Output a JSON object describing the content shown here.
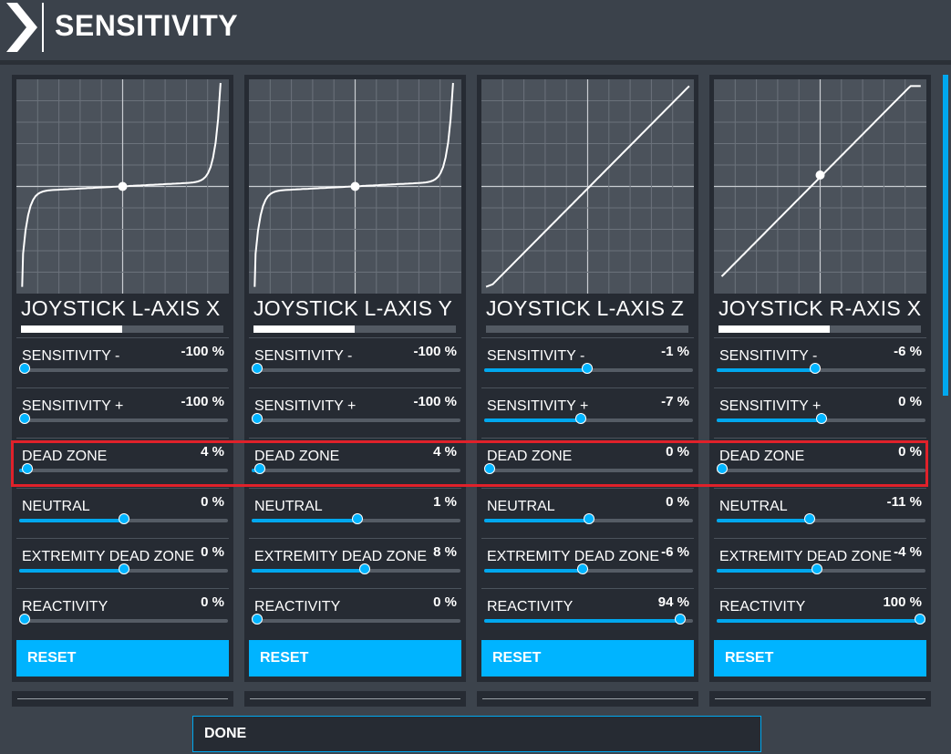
{
  "header": {
    "title": "SENSITIVITY"
  },
  "axes": [
    {
      "title": "JOYSTICK L-AXIS X",
      "progress": 0.5,
      "curve": "cubic",
      "center_marker": true,
      "settings": [
        {
          "key": "sensitivity_minus",
          "label": "SENSITIVITY -",
          "value": "-100 %",
          "level": 0.0
        },
        {
          "key": "sensitivity_plus",
          "label": "SENSITIVITY +",
          "value": "-100 %",
          "level": 0.0
        },
        {
          "key": "dead_zone",
          "label": "DEAD ZONE",
          "value": "4 %",
          "level": 0.04
        },
        {
          "key": "neutral",
          "label": "NEUTRAL",
          "value": "0 %",
          "level": 0.5
        },
        {
          "key": "extremity_dead_zone",
          "label": "EXTREMITY DEAD ZONE",
          "value": "0 %",
          "level": 0.5
        },
        {
          "key": "reactivity",
          "label": "REACTIVITY",
          "value": "0 %",
          "level": 0.0
        }
      ],
      "reset_label": "RESET"
    },
    {
      "title": "JOYSTICK L-AXIS Y",
      "progress": 0.5,
      "curve": "cubic",
      "center_marker": true,
      "settings": [
        {
          "key": "sensitivity_minus",
          "label": "SENSITIVITY -",
          "value": "-100 %",
          "level": 0.0
        },
        {
          "key": "sensitivity_plus",
          "label": "SENSITIVITY +",
          "value": "-100 %",
          "level": 0.0
        },
        {
          "key": "dead_zone",
          "label": "DEAD ZONE",
          "value": "4 %",
          "level": 0.04
        },
        {
          "key": "neutral",
          "label": "NEUTRAL",
          "value": "1 %",
          "level": 0.505
        },
        {
          "key": "extremity_dead_zone",
          "label": "EXTREMITY DEAD ZONE",
          "value": "8 %",
          "level": 0.54
        },
        {
          "key": "reactivity",
          "label": "REACTIVITY",
          "value": "0 %",
          "level": 0.0
        }
      ],
      "reset_label": "RESET"
    },
    {
      "title": "JOYSTICK L-AXIS Z",
      "progress": 0.0,
      "curve": "linear-full",
      "center_marker": false,
      "settings": [
        {
          "key": "sensitivity_minus",
          "label": "SENSITIVITY -",
          "value": "-1 %",
          "level": 0.495
        },
        {
          "key": "sensitivity_plus",
          "label": "SENSITIVITY +",
          "value": "-7 %",
          "level": 0.465
        },
        {
          "key": "dead_zone",
          "label": "DEAD ZONE",
          "value": "0 %",
          "level": 0.0
        },
        {
          "key": "neutral",
          "label": "NEUTRAL",
          "value": "0 %",
          "level": 0.5
        },
        {
          "key": "extremity_dead_zone",
          "label": "EXTREMITY DEAD ZONE",
          "value": "-6 %",
          "level": 0.47
        },
        {
          "key": "reactivity",
          "label": "REACTIVITY",
          "value": "94 %",
          "level": 0.94
        }
      ],
      "reset_label": "RESET"
    },
    {
      "title": "JOYSTICK R-AXIS X",
      "progress": 0.55,
      "curve": "linear-shifted",
      "center_marker": true,
      "settings": [
        {
          "key": "sensitivity_minus",
          "label": "SENSITIVITY -",
          "value": "-6 %",
          "level": 0.47
        },
        {
          "key": "sensitivity_plus",
          "label": "SENSITIVITY +",
          "value": "0 %",
          "level": 0.5
        },
        {
          "key": "dead_zone",
          "label": "DEAD ZONE",
          "value": "0 %",
          "level": 0.0
        },
        {
          "key": "neutral",
          "label": "NEUTRAL",
          "value": "-11 %",
          "level": 0.445
        },
        {
          "key": "extremity_dead_zone",
          "label": "EXTREMITY DEAD ZONE",
          "value": "-4 %",
          "level": 0.48
        },
        {
          "key": "reactivity",
          "label": "REACTIVITY",
          "value": "100 %",
          "level": 1.0
        }
      ],
      "reset_label": "RESET"
    }
  ],
  "highlight": {
    "setting": "dead_zone",
    "color": "#e0212a"
  },
  "footer": {
    "done_label": "DONE"
  },
  "colors": {
    "accent": "#00b4ff",
    "panel": "#262b33",
    "graph": "#4b525b"
  }
}
